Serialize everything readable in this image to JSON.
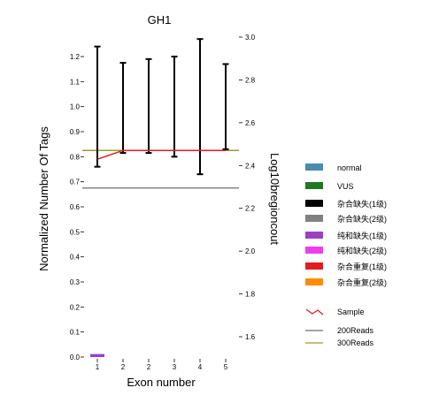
{
  "chart_data": {
    "type": "line",
    "title": "GH1",
    "xlabel": "Exon number",
    "ylabel": "Normalized Number Of Tags",
    "y2label": "Log10bregioncout",
    "x_ticks": [
      "1",
      "2",
      "2",
      "3",
      "4",
      "5"
    ],
    "y_ticks": [
      "0.0",
      "0.1",
      "0.2",
      "0.3",
      "0.4",
      "0.5",
      "0.6",
      "0.7",
      "0.8",
      "0.9",
      "1.0",
      "1.1",
      "1.2"
    ],
    "ylim": [
      0.0,
      1.26
    ],
    "y2_ticks": [
      "1.6",
      "1.8",
      "2.0",
      "2.2",
      "2.4",
      "2.6",
      "2.8",
      "3.0"
    ],
    "y2lim": [
      1.5,
      3.02
    ],
    "sample_line": [
      0.79,
      0.825,
      0.825,
      0.825,
      0.825,
      0.825
    ],
    "error_bars": [
      {
        "x_index": 1,
        "low": 0.76,
        "high": 1.24
      },
      {
        "x_index": 2,
        "low": 0.815,
        "high": 1.175
      },
      {
        "x_index": 3,
        "low": 0.815,
        "high": 1.19
      },
      {
        "x_index": 4,
        "low": 0.8,
        "high": 1.2
      },
      {
        "x_index": 5,
        "low": 0.73,
        "high": 1.27
      },
      {
        "x_index": 6,
        "low": 0.83,
        "high": 1.17
      }
    ],
    "reads_200": 0.675,
    "reads_300": 0.825,
    "bars": [
      {
        "x_index": 1,
        "value": 0.012,
        "category": "纯和缺失(1级)"
      }
    ],
    "grid": false,
    "legend_position": "right"
  },
  "legend": {
    "items": [
      {
        "label": "normal",
        "color": "#4a8cae",
        "shape": "box"
      },
      {
        "label": "VUS",
        "color": "#1f7a1f",
        "shape": "box"
      },
      {
        "label": "杂合缺失(1级)",
        "color": "#000000",
        "shape": "box"
      },
      {
        "label": "杂合缺失(2级)",
        "color": "#808080",
        "shape": "box"
      },
      {
        "label": "纯和缺失(1级)",
        "color": "#9b3fc4",
        "shape": "box"
      },
      {
        "label": "纯和缺失(2级)",
        "color": "#f03cf0",
        "shape": "box"
      },
      {
        "label": "杂合重复(1级)",
        "color": "#e41a1c",
        "shape": "box"
      },
      {
        "label": "杂合重复(2级)",
        "color": "#ff8c00",
        "shape": "box"
      },
      {
        "label": "Sample",
        "color": "#e41a1c",
        "shape": "zigzag"
      },
      {
        "label": "200Reads",
        "color": "#6e6e6e",
        "shape": "line"
      },
      {
        "label": "300Reads",
        "color": "#9a9a2a",
        "shape": "line"
      }
    ]
  },
  "colors": {
    "sample": "#e41a1c",
    "reads_200": "#6e6e6e",
    "reads_300": "#9a9a2a",
    "error_bar": "#000000",
    "bar": "#9b3fc4"
  }
}
